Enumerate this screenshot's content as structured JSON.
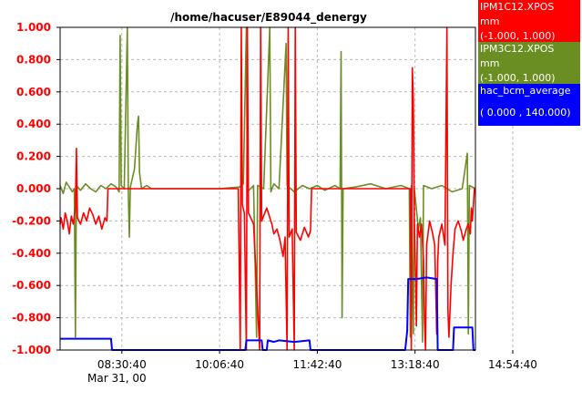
{
  "chart_data": {
    "type": "line",
    "title": "/home/hacuser/E89044_denergy",
    "ylim": [
      -1.0,
      1.0
    ],
    "yticks": [
      "1.000",
      "0.800",
      "0.600",
      "0.400",
      "0.200",
      "0.000",
      "-0.200",
      "-0.400",
      "-0.600",
      "-0.800",
      "-1.000"
    ],
    "xticks": [
      "08:30:40",
      "10:06:40",
      "11:42:40",
      "13:18:40",
      "14:54:40"
    ],
    "xdate": "Mar 31, 00",
    "grid": true,
    "series": [
      {
        "name": "IPM1C12.XPOS",
        "unit": "mm",
        "range": "(-1.000,  1.000)",
        "color": "#ff0000",
        "points": [
          [
            "07:30:00",
            -0.22
          ],
          [
            "07:31:00",
            -0.18
          ],
          [
            "07:33:00",
            -0.25
          ],
          [
            "07:35:00",
            -0.15
          ],
          [
            "07:37:00",
            -0.2
          ],
          [
            "07:39:00",
            -0.28
          ],
          [
            "07:41:00",
            -0.17
          ],
          [
            "07:43:00",
            -0.22
          ],
          [
            "07:45:00",
            -0.12
          ],
          [
            "07:46:00",
            0.25
          ],
          [
            "07:47:00",
            -0.18
          ],
          [
            "07:50:00",
            -0.22
          ],
          [
            "07:53:00",
            -0.15
          ],
          [
            "07:56:00",
            -0.2
          ],
          [
            "07:59:00",
            -0.12
          ],
          [
            "08:02:00",
            -0.16
          ],
          [
            "08:05:00",
            -0.22
          ],
          [
            "08:08:00",
            -0.17
          ],
          [
            "08:11:00",
            -0.25
          ],
          [
            "08:14:00",
            -0.18
          ],
          [
            "08:16:00",
            -0.2
          ],
          [
            "08:17:00",
            0.0
          ],
          [
            "08:30:40",
            0.0
          ],
          [
            "09:06:40",
            0.0
          ],
          [
            "10:06:40",
            0.0
          ],
          [
            "10:25:00",
            0.0
          ],
          [
            "10:27:00",
            -1.0
          ],
          [
            "10:28:00",
            1.0
          ],
          [
            "10:29:00",
            -0.1
          ],
          [
            "10:31:00",
            -0.15
          ],
          [
            "10:33:00",
            -1.0
          ],
          [
            "10:34:00",
            1.0
          ],
          [
            "10:35:00",
            -0.15
          ],
          [
            "10:40:00",
            -0.22
          ],
          [
            "10:46:00",
            -1.0
          ],
          [
            "10:47:00",
            1.0
          ],
          [
            "10:48:00",
            -0.2
          ],
          [
            "10:53:00",
            -0.12
          ],
          [
            "10:58:00",
            -0.22
          ],
          [
            "11:00:00",
            -0.28
          ],
          [
            "11:03:00",
            -0.25
          ],
          [
            "11:06:00",
            -0.32
          ],
          [
            "11:09:00",
            -0.42
          ],
          [
            "11:11:00",
            -0.3
          ],
          [
            "11:13:00",
            -1.0
          ],
          [
            "11:14:00",
            1.0
          ],
          [
            "11:15:00",
            -0.3
          ],
          [
            "11:18:00",
            -0.25
          ],
          [
            "11:20:00",
            -1.0
          ],
          [
            "11:21:00",
            1.0
          ],
          [
            "11:22:00",
            -0.27
          ],
          [
            "11:26:00",
            -0.32
          ],
          [
            "11:30:00",
            -0.24
          ],
          [
            "11:34:00",
            -0.3
          ],
          [
            "11:36:00",
            -0.26
          ],
          [
            "11:37:00",
            0.0
          ],
          [
            "12:40:00",
            0.0
          ],
          [
            "13:10:00",
            0.0
          ],
          [
            "13:14:00",
            0.0
          ],
          [
            "13:15:00",
            -1.0
          ],
          [
            "13:16:00",
            0.75
          ],
          [
            "13:17:00",
            0.55
          ],
          [
            "13:18:00",
            -0.2
          ],
          [
            "13:19:00",
            -0.5
          ],
          [
            "13:20:00",
            -0.85
          ],
          [
            "13:21:00",
            -0.22
          ],
          [
            "13:23:00",
            -0.3
          ],
          [
            "13:25:00",
            -0.22
          ],
          [
            "13:27:00",
            -0.45
          ],
          [
            "13:28:00",
            -0.82
          ],
          [
            "13:29:00",
            -1.0
          ],
          [
            "13:30:00",
            -0.35
          ],
          [
            "13:33:00",
            -0.2
          ],
          [
            "13:36:00",
            -0.28
          ],
          [
            "13:38:00",
            -0.35
          ],
          [
            "13:40:00",
            -0.9
          ],
          [
            "13:41:00",
            -0.45
          ],
          [
            "13:42:00",
            -0.3
          ],
          [
            "13:45:00",
            -0.22
          ],
          [
            "13:48:00",
            -0.35
          ],
          [
            "13:50:00",
            1.0
          ],
          [
            "13:51:00",
            -0.75
          ],
          [
            "13:52:00",
            -0.92
          ],
          [
            "13:54:00",
            -0.6
          ],
          [
            "13:56:00",
            -0.4
          ],
          [
            "13:58:00",
            -0.25
          ],
          [
            "14:01:00",
            -0.2
          ],
          [
            "14:04:00",
            -0.26
          ],
          [
            "14:06:00",
            -0.32
          ],
          [
            "14:09:00",
            -0.25
          ],
          [
            "14:11:00",
            -0.22
          ],
          [
            "14:13:00",
            -0.28
          ],
          [
            "14:14:00",
            -0.12
          ],
          [
            "14:15:00",
            -0.2
          ],
          [
            "14:17:00",
            0.0
          ],
          [
            "14:18:00",
            0.0
          ]
        ]
      },
      {
        "name": "IPM3C12.XPOS",
        "unit": "mm",
        "range": "(-1.000,  1.000)",
        "color": "#6b8e23",
        "points": [
          [
            "07:30:00",
            0.02
          ],
          [
            "07:33:00",
            -0.03
          ],
          [
            "07:36:00",
            0.04
          ],
          [
            "07:39:00",
            0.01
          ],
          [
            "07:42:00",
            -0.02
          ],
          [
            "07:44:00",
            0.0
          ],
          [
            "07:45:00",
            -0.92
          ],
          [
            "07:46:00",
            0.02
          ],
          [
            "07:50:00",
            -0.01
          ],
          [
            "07:55:00",
            0.03
          ],
          [
            "08:00:00",
            0.0
          ],
          [
            "08:05:00",
            -0.02
          ],
          [
            "08:10:00",
            0.02
          ],
          [
            "08:15:00",
            0.0
          ],
          [
            "08:20:00",
            0.03
          ],
          [
            "08:25:00",
            0.01
          ],
          [
            "08:28:00",
            -0.02
          ],
          [
            "08:29:00",
            0.95
          ],
          [
            "08:30:00",
            0.02
          ],
          [
            "08:33:00",
            0.0
          ],
          [
            "08:36:00",
            1.0
          ],
          [
            "08:37:00",
            -0.03
          ],
          [
            "08:38:00",
            -0.3
          ],
          [
            "08:39:00",
            0.01
          ],
          [
            "08:43:00",
            0.12
          ],
          [
            "08:46:00",
            0.4
          ],
          [
            "08:47:00",
            0.45
          ],
          [
            "08:48:00",
            0.1
          ],
          [
            "08:50:00",
            0.0
          ],
          [
            "08:55:00",
            0.02
          ],
          [
            "09:00:00",
            0.0
          ],
          [
            "09:06:40",
            0.0
          ],
          [
            "10:06:40",
            0.0
          ],
          [
            "10:26:00",
            0.01
          ],
          [
            "10:30:00",
            0.03
          ],
          [
            "10:33:00",
            1.0
          ],
          [
            "10:34:00",
            -0.02
          ],
          [
            "10:40:00",
            0.02
          ],
          [
            "10:43:00",
            -0.92
          ],
          [
            "10:44:00",
            0.02
          ],
          [
            "10:50:00",
            0.0
          ],
          [
            "10:56:00",
            1.0
          ],
          [
            "10:57:00",
            -0.02
          ],
          [
            "11:00:00",
            0.03
          ],
          [
            "11:05:00",
            0.0
          ],
          [
            "11:12:00",
            0.9
          ],
          [
            "11:13:00",
            0.02
          ],
          [
            "11:20:00",
            -0.02
          ],
          [
            "11:28:00",
            0.02
          ],
          [
            "11:35:00",
            0.0
          ],
          [
            "11:42:40",
            0.02
          ],
          [
            "11:50:00",
            -0.01
          ],
          [
            "12:00:00",
            0.02
          ],
          [
            "12:05:00",
            0.0
          ],
          [
            "12:06:00",
            0.85
          ],
          [
            "12:07:00",
            -0.8
          ],
          [
            "12:08:00",
            0.0
          ],
          [
            "12:20:00",
            0.01
          ],
          [
            "12:35:00",
            0.03
          ],
          [
            "12:50:00",
            0.0
          ],
          [
            "13:05:00",
            0.02
          ],
          [
            "13:13:00",
            0.0
          ],
          [
            "13:14:00",
            -0.92
          ],
          [
            "13:15:00",
            0.02
          ],
          [
            "13:17:00",
            -0.9
          ],
          [
            "13:18:00",
            0.0
          ],
          [
            "13:22:00",
            -0.25
          ],
          [
            "13:24:00",
            -0.18
          ],
          [
            "13:26:00",
            -0.95
          ],
          [
            "13:27:00",
            0.02
          ],
          [
            "13:35:00",
            0.0
          ],
          [
            "13:45:00",
            0.02
          ],
          [
            "13:55:00",
            -0.02
          ],
          [
            "14:05:00",
            0.0
          ],
          [
            "14:10:00",
            0.22
          ],
          [
            "14:11:00",
            -0.9
          ],
          [
            "14:12:00",
            0.02
          ],
          [
            "14:18:00",
            0.0
          ]
        ]
      },
      {
        "name": "hac_bcm_average",
        "unit": "",
        "range": "( 0.000  ,  140.000)",
        "color": "#0000ff",
        "points": [
          [
            "07:30:00",
            -0.93
          ],
          [
            "08:00:00",
            -0.93
          ],
          [
            "08:20:00",
            -0.93
          ],
          [
            "08:21:00",
            -1.0
          ],
          [
            "10:20:00",
            -1.0
          ],
          [
            "10:32:00",
            -1.0
          ],
          [
            "10:33:00",
            -0.94
          ],
          [
            "10:48:00",
            -0.94
          ],
          [
            "10:49:00",
            -1.0
          ],
          [
            "10:53:00",
            -1.0
          ],
          [
            "10:54:00",
            -0.94
          ],
          [
            "11:00:00",
            -0.95
          ],
          [
            "11:05:00",
            -0.94
          ],
          [
            "11:20:00",
            -0.95
          ],
          [
            "11:35:00",
            -0.94
          ],
          [
            "11:36:00",
            -1.0
          ],
          [
            "13:09:00",
            -1.0
          ],
          [
            "13:10:00",
            -0.94
          ],
          [
            "13:11:00",
            -0.88
          ],
          [
            "13:12:00",
            -0.56
          ],
          [
            "13:20:00",
            -0.56
          ],
          [
            "13:30:00",
            -0.55
          ],
          [
            "13:40:00",
            -0.56
          ],
          [
            "13:41:00",
            -1.0
          ],
          [
            "13:56:00",
            -1.0
          ],
          [
            "13:57:00",
            -0.86
          ],
          [
            "14:05:00",
            -0.86
          ],
          [
            "14:15:00",
            -0.86
          ],
          [
            "14:16:00",
            -1.0
          ],
          [
            "14:18:00",
            -1.0
          ]
        ]
      }
    ]
  }
}
